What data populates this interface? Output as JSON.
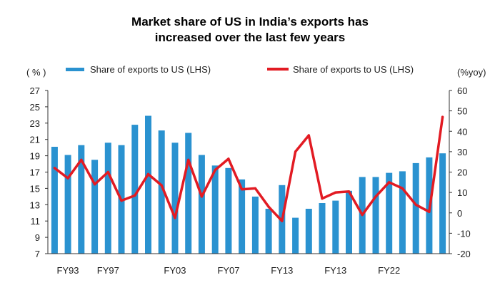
{
  "chart_data": {
    "type": "bar",
    "title_line1": "Market share of US in India’s exports has",
    "title_line2": "increased over the last few years",
    "left_unit": "( % )",
    "right_unit": "(%yoy)",
    "ylim_left": [
      7,
      27
    ],
    "yticks_left": [
      7,
      9,
      11,
      13,
      15,
      17,
      19,
      21,
      23,
      25,
      27
    ],
    "ylim_right": [
      -20,
      60
    ],
    "yticks_right": [
      -20,
      -10,
      0,
      10,
      20,
      30,
      40,
      50,
      60
    ],
    "x_tick_labels": [
      "FY93",
      "FY97",
      "FY03",
      "FY07",
      "FY13",
      "FY13",
      "FY22"
    ],
    "x_tick_label_positions": [
      0,
      4,
      9,
      13,
      17,
      21,
      25
    ],
    "grid": false,
    "legend_position": "top",
    "colors": {
      "bar": "#2a92d0",
      "line": "#e21b23"
    },
    "series": [
      {
        "name": "Share of exports to US (LHS)",
        "type": "bar",
        "axis": "left",
        "values": [
          20.1,
          19.1,
          20.3,
          18.5,
          20.6,
          20.3,
          22.8,
          23.9,
          22.1,
          20.6,
          21.8,
          19.1,
          17.8,
          17.5,
          16.1,
          14.0,
          12.5,
          15.4,
          11.4,
          12.5,
          13.2,
          13.5,
          14.7,
          16.4,
          16.4,
          16.9,
          17.1,
          18.1,
          18.8,
          19.3
        ]
      },
      {
        "name": "Share of exports to US (LHS)",
        "type": "line",
        "axis": "right",
        "values": [
          22,
          17,
          26,
          14,
          20,
          6,
          8.5,
          19,
          13.5,
          -2.5,
          26,
          8,
          21,
          26.5,
          11.5,
          12,
          3,
          -4,
          30,
          38,
          7,
          10,
          10.5,
          -1,
          8,
          15,
          12,
          4,
          0.5,
          47
        ]
      }
    ]
  }
}
